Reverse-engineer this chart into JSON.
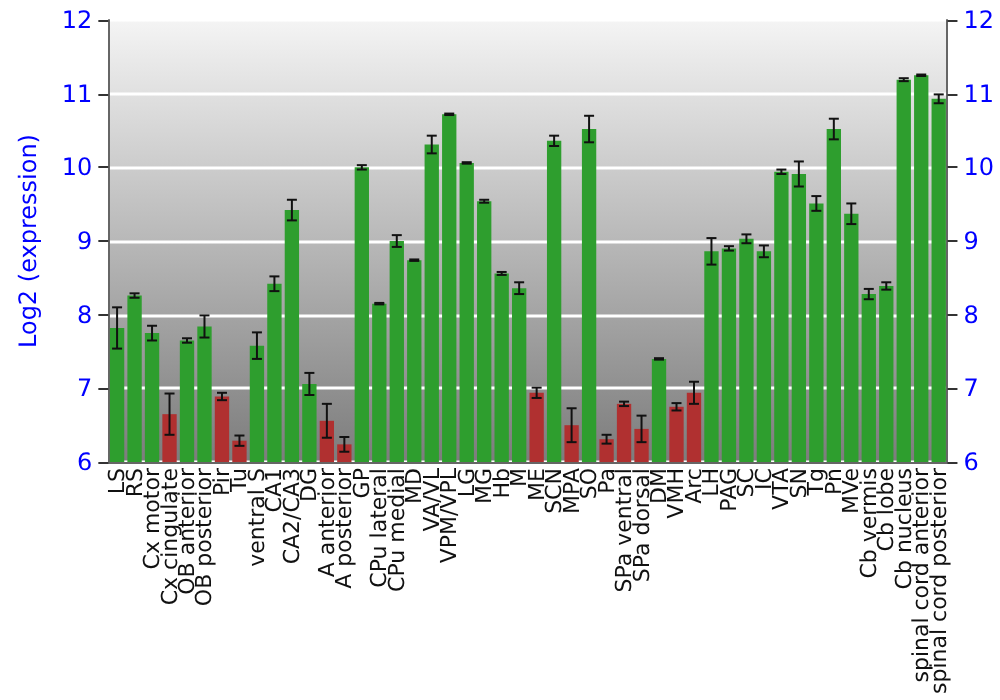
{
  "chart_data": {
    "type": "bar",
    "ylabel": "Log2 (expression)",
    "categories": [
      "LS",
      "RS",
      "Cx motor",
      "Cx cingulate",
      "OB anterior",
      "OB posterior",
      "Pir",
      "Tu",
      "ventral S",
      "CA1",
      "CA2/CA3",
      "DG",
      "A anterior",
      "A posterior",
      "GP",
      "CPu lateral",
      "CPu medial",
      "MD",
      "VA/VL",
      "VPM/VPL",
      "LG",
      "MG",
      "Hb",
      "M",
      "ME",
      "SCN",
      "MPA",
      "SO",
      "Pa",
      "SPa ventral",
      "SPa dorsal",
      "DM",
      "VMH",
      "Arc",
      "LH",
      "PAG",
      "SC",
      "IC",
      "VTA",
      "SN",
      "Tg",
      "Pn",
      "MVe",
      "Cb vermis",
      "Cb lobe",
      "Cb nucleus",
      "spinal cord anterior",
      "spinal cord posterior"
    ],
    "values": [
      7.82,
      8.26,
      7.75,
      6.65,
      7.65,
      7.84,
      6.89,
      6.29,
      7.58,
      8.42,
      9.42,
      7.06,
      6.56,
      6.24,
      10.0,
      8.15,
      9.0,
      8.74,
      10.31,
      10.72,
      10.06,
      9.54,
      8.56,
      8.36,
      6.94,
      10.36,
      6.5,
      10.52,
      6.31,
      6.79,
      6.45,
      7.4,
      6.75,
      6.94,
      8.86,
      8.9,
      9.03,
      8.86,
      9.94,
      9.91,
      9.51,
      10.52,
      9.37,
      8.28,
      8.39,
      11.19,
      11.25,
      10.93
    ],
    "errors": [
      0.28,
      0.03,
      0.1,
      0.28,
      0.03,
      0.15,
      0.05,
      0.07,
      0.18,
      0.1,
      0.14,
      0.15,
      0.23,
      0.1,
      0.03,
      0.01,
      0.08,
      0.01,
      0.12,
      0.01,
      0.01,
      0.02,
      0.02,
      0.08,
      0.07,
      0.07,
      0.23,
      0.18,
      0.06,
      0.03,
      0.18,
      0.01,
      0.05,
      0.15,
      0.18,
      0.03,
      0.06,
      0.08,
      0.03,
      0.17,
      0.1,
      0.14,
      0.14,
      0.07,
      0.05,
      0.02,
      0.01,
      0.06
    ],
    "colors": [
      "#2e9e2e",
      "#2e9e2e",
      "#2e9e2e",
      "#b03030",
      "#2e9e2e",
      "#2e9e2e",
      "#b03030",
      "#b03030",
      "#2e9e2e",
      "#2e9e2e",
      "#2e9e2e",
      "#2e9e2e",
      "#b03030",
      "#b03030",
      "#2e9e2e",
      "#2e9e2e",
      "#2e9e2e",
      "#2e9e2e",
      "#2e9e2e",
      "#2e9e2e",
      "#2e9e2e",
      "#2e9e2e",
      "#2e9e2e",
      "#2e9e2e",
      "#b03030",
      "#2e9e2e",
      "#b03030",
      "#2e9e2e",
      "#b03030",
      "#b03030",
      "#b03030",
      "#2e9e2e",
      "#b03030",
      "#b03030",
      "#2e9e2e",
      "#2e9e2e",
      "#2e9e2e",
      "#2e9e2e",
      "#2e9e2e",
      "#2e9e2e",
      "#2e9e2e",
      "#2e9e2e",
      "#2e9e2e",
      "#2e9e2e",
      "#2e9e2e",
      "#2e9e2e",
      "#2e9e2e",
      "#2e9e2e"
    ],
    "ylim": [
      6,
      12
    ],
    "yticks": [
      6,
      7,
      8,
      9,
      10,
      11,
      12
    ],
    "y2lim": [
      6,
      12
    ],
    "y2ticks": [
      6,
      7,
      8,
      9,
      10,
      11,
      12
    ],
    "grid": "y"
  }
}
